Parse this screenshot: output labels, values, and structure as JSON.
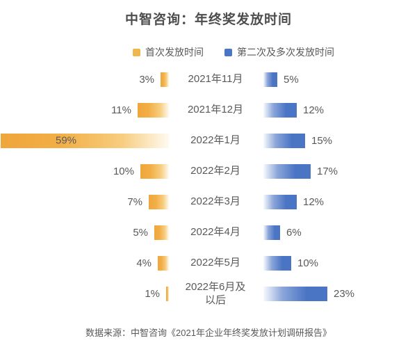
{
  "title": "中智咨询：年终奖发放时间",
  "chart_data": {
    "type": "bar",
    "variant": "bidirectional-tornado",
    "title": "中智咨询：年终奖发放时间",
    "categories": [
      "2021年11月",
      "2021年12月",
      "2022年1月",
      "2022年2月",
      "2022年3月",
      "2022年4月",
      "2022年5月",
      "2022年6月及\n以后"
    ],
    "series": [
      {
        "name": "首次发放时间",
        "direction": "left",
        "color": "#efa63c",
        "unit": "%",
        "values": [
          3,
          11,
          59,
          10,
          7,
          5,
          4,
          1
        ]
      },
      {
        "name": "第二次及多次发放时间",
        "direction": "right",
        "color": "#4a74c4",
        "unit": "%",
        "values": [
          5,
          12,
          15,
          17,
          12,
          6,
          10,
          23
        ]
      }
    ],
    "value_labels": true,
    "legend_position": "top",
    "xlim": [
      0,
      60
    ],
    "grid": false
  },
  "footer": {
    "source": "数据来源：中智咨询《2021年企业年终奖发放计划调研报告》"
  },
  "colors": {
    "first_series": "#efa63c",
    "second_series": "#4a74c4",
    "title_text": "#4d4d4d",
    "body_text": "#595959",
    "background": "#ffffff"
  }
}
